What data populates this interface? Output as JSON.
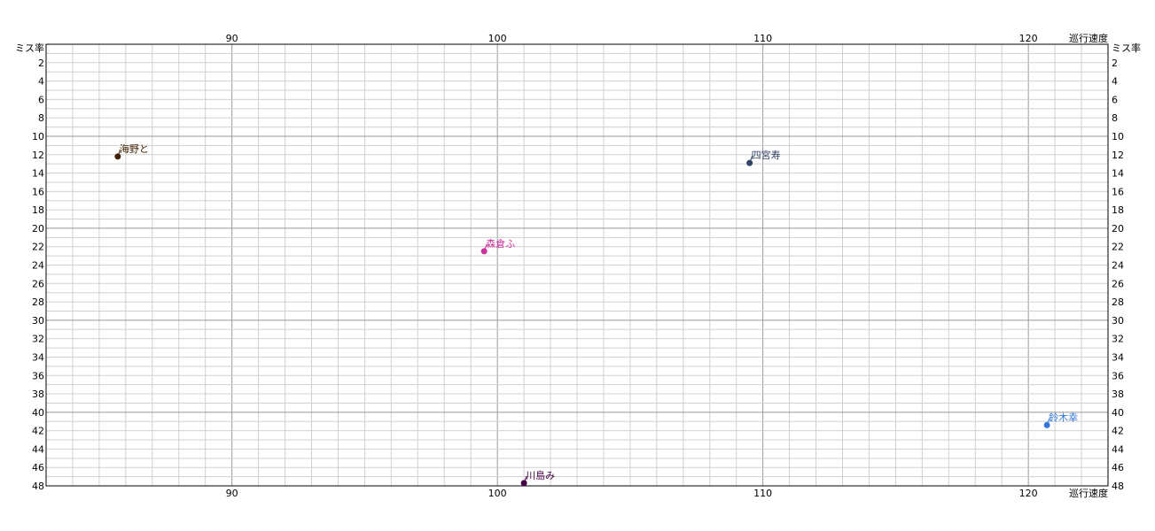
{
  "chart_data": {
    "type": "scatter",
    "xlabel": "巡行速度",
    "ylabel": "ミス率",
    "xlim": [
      83,
      123
    ],
    "ylim": [
      0,
      48
    ],
    "y_inverted": true,
    "x_ticks": [
      90,
      100,
      110,
      120
    ],
    "y_ticks": [
      2,
      4,
      6,
      8,
      10,
      12,
      14,
      16,
      18,
      20,
      22,
      24,
      26,
      28,
      30,
      32,
      34,
      36,
      38,
      40,
      42,
      44,
      46,
      48
    ],
    "grid": true,
    "points": [
      {
        "label": "海野と",
        "x": 85.7,
        "y": 12.2,
        "color": "#402000"
      },
      {
        "label": "四宮寿",
        "x": 109.5,
        "y": 12.9,
        "color": "#334466"
      },
      {
        "label": "森倉ふ",
        "x": 99.5,
        "y": 22.5,
        "color": "#cc3399"
      },
      {
        "label": "鈴木幸",
        "x": 120.7,
        "y": 41.4,
        "color": "#3377dd"
      },
      {
        "label": "川島み",
        "x": 101.0,
        "y": 47.7,
        "color": "#440044"
      }
    ]
  }
}
